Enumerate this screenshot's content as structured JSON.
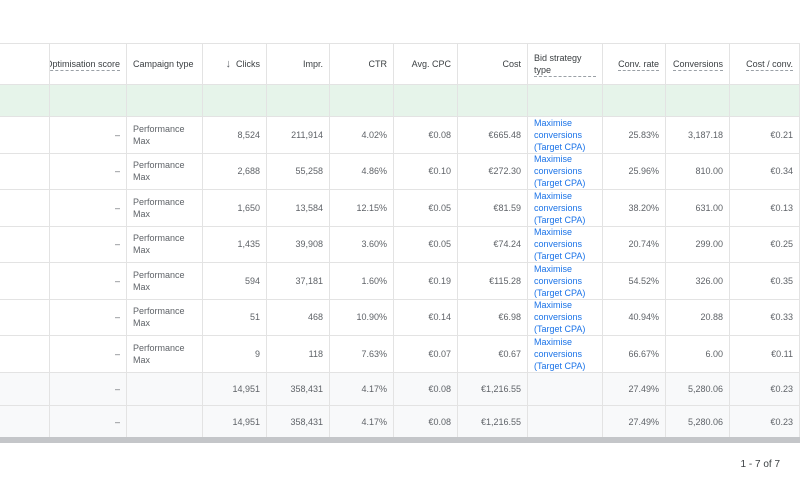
{
  "table": {
    "headers": [
      {
        "label": "",
        "dotted": false
      },
      {
        "label": "Optimisation score",
        "dotted": true
      },
      {
        "label": "Campaign type",
        "dotted": false
      },
      {
        "label": "Clicks",
        "dotted": false,
        "sorted": "descending"
      },
      {
        "label": "Impr.",
        "dotted": false
      },
      {
        "label": "CTR",
        "dotted": false
      },
      {
        "label": "Avg. CPC",
        "dotted": false
      },
      {
        "label": "Cost",
        "dotted": false
      },
      {
        "label": "Bid strategy type",
        "dotted": true
      },
      {
        "label": "Conv. rate",
        "dotted": true
      },
      {
        "label": "Conversions",
        "dotted": true
      },
      {
        "label": "Cost / conv.",
        "dotted": true
      }
    ],
    "sort_icon": "arrow-down-icon",
    "rows": [
      {
        "opt": "–",
        "type": "Performance Max",
        "clicks": "8,524",
        "impr": "211,914",
        "ctr": "4.02%",
        "cpc": "€0.08",
        "cost": "€665.48",
        "bid": "Maximise conversions (Target CPA)",
        "conv_rate": "25.83%",
        "conversions": "3,187.18",
        "cost_conv": "€0.21"
      },
      {
        "opt": "–",
        "type": "Performance Max",
        "clicks": "2,688",
        "impr": "55,258",
        "ctr": "4.86%",
        "cpc": "€0.10",
        "cost": "€272.30",
        "bid": "Maximise conversions (Target CPA)",
        "conv_rate": "25.96%",
        "conversions": "810.00",
        "cost_conv": "€0.34"
      },
      {
        "opt": "–",
        "type": "Performance Max",
        "clicks": "1,650",
        "impr": "13,584",
        "ctr": "12.15%",
        "cpc": "€0.05",
        "cost": "€81.59",
        "bid": "Maximise conversions (Target CPA)",
        "conv_rate": "38.20%",
        "conversions": "631.00",
        "cost_conv": "€0.13"
      },
      {
        "opt": "–",
        "type": "Performance Max",
        "clicks": "1,435",
        "impr": "39,908",
        "ctr": "3.60%",
        "cpc": "€0.05",
        "cost": "€74.24",
        "bid": "Maximise conversions (Target CPA)",
        "conv_rate": "20.74%",
        "conversions": "299.00",
        "cost_conv": "€0.25"
      },
      {
        "opt": "–",
        "type": "Performance Max",
        "clicks": "594",
        "impr": "37,181",
        "ctr": "1.60%",
        "cpc": "€0.19",
        "cost": "€115.28",
        "bid": "Maximise conversions (Target CPA)",
        "conv_rate": "54.52%",
        "conversions": "326.00",
        "cost_conv": "€0.35"
      },
      {
        "opt": "–",
        "type": "Performance Max",
        "clicks": "51",
        "impr": "468",
        "ctr": "10.90%",
        "cpc": "€0.14",
        "cost": "€6.98",
        "bid": "Maximise conversions (Target CPA)",
        "conv_rate": "40.94%",
        "conversions": "20.88",
        "cost_conv": "€0.33"
      },
      {
        "opt": "–",
        "type": "Performance Max",
        "clicks": "9",
        "impr": "118",
        "ctr": "7.63%",
        "cpc": "€0.07",
        "cost": "€0.67",
        "bid": "Maximise conversions (Target CPA)",
        "conv_rate": "66.67%",
        "conversions": "6.00",
        "cost_conv": "€0.11"
      }
    ],
    "totals": [
      {
        "opt": "–",
        "clicks": "14,951",
        "impr": "358,431",
        "ctr": "4.17%",
        "cpc": "€0.08",
        "cost": "€1,216.55",
        "conv_rate": "27.49%",
        "conversions": "5,280.06",
        "cost_conv": "€0.23"
      },
      {
        "opt": "–",
        "clicks": "14,951",
        "impr": "358,431",
        "ctr": "4.17%",
        "cpc": "€0.08",
        "cost": "€1,216.55",
        "conv_rate": "27.49%",
        "conversions": "5,280.06",
        "cost_conv": "€0.23"
      }
    ]
  },
  "pagination": {
    "label": "1 - 7 of 7"
  },
  "colors": {
    "filter_row": "#e6f4ea",
    "link": "#1a73e8",
    "totals_bg": "#f8f9fa",
    "scrollbar": "#c4c6c9"
  }
}
